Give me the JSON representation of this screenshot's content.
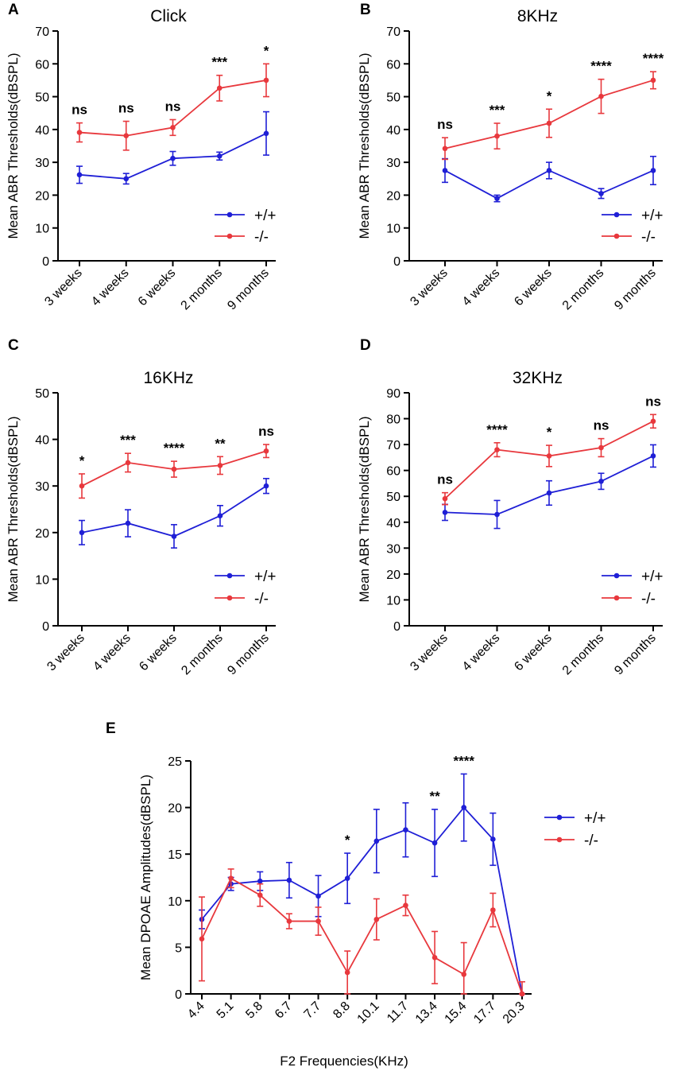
{
  "chart_data": [
    {
      "panel": "A",
      "type": "line",
      "title": "Click",
      "ylabel": "Mean ABR Thresholds(dBSPL)",
      "xlabel": "",
      "ylim": [
        0,
        70
      ],
      "yticks": [
        0,
        10,
        20,
        30,
        40,
        50,
        60,
        70
      ],
      "categories": [
        "3 weeks",
        "4 weeks",
        "6 weeks",
        "2 months",
        "9 months"
      ],
      "series": [
        {
          "name": "+/+",
          "color": "#1f1fd6",
          "values": [
            26.2,
            25.0,
            31.2,
            31.9,
            38.8
          ],
          "errors": [
            2.6,
            1.6,
            2.1,
            1.2,
            6.6
          ]
        },
        {
          "name": "-/-",
          "color": "#e8383d",
          "values": [
            39.1,
            38.1,
            40.6,
            52.6,
            55.0
          ],
          "errors": [
            2.9,
            4.4,
            2.4,
            3.9,
            5.0
          ]
        }
      ],
      "significance": [
        "ns",
        "ns",
        "ns",
        "***",
        "*"
      ],
      "legend": "bottom-right"
    },
    {
      "panel": "B",
      "type": "line",
      "title": "8KHz",
      "ylabel": "Mean ABR Thresholds(dBSPL)",
      "xlabel": "",
      "ylim": [
        0,
        70
      ],
      "yticks": [
        0,
        10,
        20,
        30,
        40,
        50,
        60,
        70
      ],
      "categories": [
        "3 weeks",
        "4 weeks",
        "6 weeks",
        "2 months",
        "9 months"
      ],
      "series": [
        {
          "name": "+/+",
          "color": "#1f1fd6",
          "values": [
            27.5,
            19.0,
            27.5,
            20.5,
            27.5
          ],
          "errors": [
            3.6,
            1.0,
            2.5,
            1.5,
            4.3
          ]
        },
        {
          "name": "-/-",
          "color": "#e8383d",
          "values": [
            34.2,
            38.0,
            41.9,
            50.1,
            55.0
          ],
          "errors": [
            3.3,
            3.9,
            4.3,
            5.2,
            2.6
          ]
        }
      ],
      "significance": [
        "ns",
        "***",
        "*",
        "****",
        "****"
      ],
      "legend": "bottom-right"
    },
    {
      "panel": "C",
      "type": "line",
      "title": "16KHz",
      "ylabel": "Mean ABR Thresholds(dBSPL)",
      "xlabel": "",
      "ylim": [
        0,
        50
      ],
      "yticks": [
        0,
        10,
        20,
        30,
        40,
        50
      ],
      "categories": [
        "3 weeks",
        "4 weeks",
        "6 weeks",
        "2 months",
        "9 months"
      ],
      "series": [
        {
          "name": "+/+",
          "color": "#1f1fd6",
          "values": [
            20.0,
            22.0,
            19.2,
            23.6,
            30.0
          ],
          "errors": [
            2.6,
            2.9,
            2.5,
            2.2,
            1.6
          ]
        },
        {
          "name": "-/-",
          "color": "#e8383d",
          "values": [
            30.0,
            35.0,
            33.6,
            34.4,
            37.5
          ],
          "errors": [
            2.6,
            2.0,
            1.7,
            1.9,
            1.4
          ]
        }
      ],
      "significance": [
        "*",
        "***",
        "****",
        "**",
        "ns"
      ],
      "legend": "bottom-right"
    },
    {
      "panel": "D",
      "type": "line",
      "title": "32KHz",
      "ylabel": "Mean ABR Thresholds(dBSPL)",
      "xlabel": "",
      "ylim": [
        0,
        90
      ],
      "yticks": [
        0,
        10,
        20,
        30,
        40,
        50,
        60,
        70,
        80,
        90
      ],
      "categories": [
        "3 weeks",
        "4 weeks",
        "6 weeks",
        "2 months",
        "9 months"
      ],
      "series": [
        {
          "name": "+/+",
          "color": "#1f1fd6",
          "values": [
            43.8,
            43.0,
            51.3,
            55.8,
            65.6
          ],
          "errors": [
            3.1,
            5.4,
            4.7,
            3.1,
            4.3
          ]
        },
        {
          "name": "-/-",
          "color": "#e8383d",
          "values": [
            49.1,
            68.0,
            65.6,
            68.8,
            79.0
          ],
          "errors": [
            2.3,
            2.7,
            4.1,
            3.5,
            2.6
          ]
        }
      ],
      "significance": [
        "ns",
        "****",
        "*",
        "ns",
        "ns"
      ],
      "legend": "bottom-right"
    },
    {
      "panel": "E",
      "type": "line",
      "title": "",
      "ylabel": "Mean DPOAE Amplitudes(dBSPL)",
      "xlabel": "F2 Frequencies(KHz)",
      "ylim": [
        0,
        25
      ],
      "yticks": [
        0,
        5,
        10,
        15,
        20,
        25
      ],
      "categories": [
        "4.4",
        "5.1",
        "5.8",
        "6.7",
        "7.7",
        "8.8",
        "10.1",
        "11.7",
        "13.4",
        "15.4",
        "17.7",
        "20.3"
      ],
      "series": [
        {
          "name": "+/+",
          "color": "#1f1fd6",
          "values": [
            8.0,
            11.8,
            12.1,
            12.2,
            10.5,
            12.4,
            16.4,
            17.6,
            16.2,
            20.0,
            16.6,
            0.0
          ],
          "errors": [
            1.0,
            0.7,
            1.0,
            1.9,
            2.2,
            2.7,
            3.4,
            2.9,
            3.6,
            3.6,
            2.8,
            0.0
          ]
        },
        {
          "name": "-/-",
          "color": "#e8383d",
          "values": [
            5.9,
            12.4,
            10.6,
            7.8,
            7.8,
            2.3,
            8.0,
            9.5,
            3.9,
            2.1,
            9.0,
            0.0
          ],
          "errors": [
            4.5,
            1.0,
            1.2,
            0.8,
            1.5,
            2.3,
            2.2,
            1.1,
            2.8,
            3.4,
            1.8,
            1.3
          ]
        }
      ],
      "significance": [
        "",
        "",
        "",
        "",
        "",
        "*",
        "",
        "",
        "**",
        "****",
        "",
        ""
      ],
      "legend": "right"
    }
  ]
}
